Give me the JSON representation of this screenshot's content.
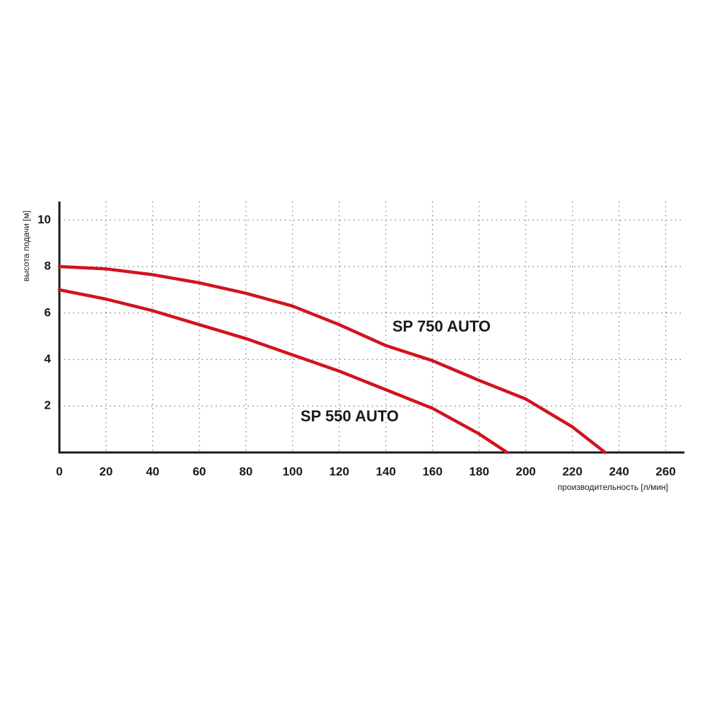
{
  "chart_data": {
    "type": "line",
    "x_label": "производительность [л/мин]",
    "y_label": "высота подачи [м]",
    "series": [
      {
        "name": "SP 750 AUTO",
        "color": "#d0141e",
        "x": [
          0,
          20,
          40,
          60,
          80,
          100,
          120,
          140,
          160,
          180,
          200,
          220,
          234
        ],
        "values": [
          8,
          7.9,
          7.65,
          7.3,
          6.85,
          6.3,
          5.5,
          4.6,
          3.95,
          3.1,
          2.3,
          1.1,
          0
        ]
      },
      {
        "name": "SP 550 AUTO",
        "color": "#d0141e",
        "x": [
          0,
          20,
          40,
          60,
          80,
          100,
          120,
          140,
          160,
          180,
          192
        ],
        "values": [
          7,
          6.6,
          6.1,
          5.5,
          4.9,
          4.2,
          3.5,
          2.7,
          1.9,
          0.8,
          0
        ]
      }
    ],
    "xlim": [
      0,
      268
    ],
    "xticks": [
      0,
      20,
      40,
      60,
      80,
      100,
      120,
      140,
      160,
      180,
      200,
      220,
      240,
      260
    ],
    "ylim": [
      0,
      10.8
    ],
    "yticks": [
      2,
      4,
      6,
      8,
      10
    ],
    "grid": true
  }
}
